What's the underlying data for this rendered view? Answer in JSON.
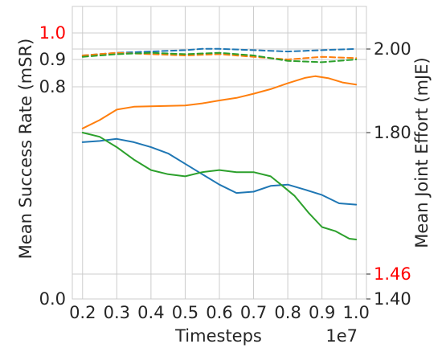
{
  "chart_data": {
    "type": "line",
    "xlabel": "Timesteps",
    "x_offset_label": "1e7",
    "xlim": [
      0.17,
      1.03
    ],
    "xticks": [
      "0.2",
      "0.3",
      "0.4",
      "0.5",
      "0.6",
      "0.7",
      "0.8",
      "0.9",
      "1.0"
    ],
    "xtick_values": [
      0.2,
      0.3,
      0.4,
      0.5,
      0.6,
      0.7,
      0.8,
      0.9,
      1.0
    ],
    "left_axis": {
      "label": "Mean Success Rate (mSR)",
      "ticks": [
        {
          "label": "0.0",
          "value": 0.0,
          "color": "#262626"
        },
        {
          "label": "0.8",
          "value": 0.8,
          "color": "#262626"
        },
        {
          "label": "0.9",
          "value": 0.9,
          "color": "#262626"
        },
        {
          "label": "1.0",
          "value": 1.0,
          "color": "#ff0000"
        }
      ]
    },
    "right_axis": {
      "label": "Mean Joint Effort (mJE)",
      "ticks": [
        {
          "label": "1.40",
          "value": 1.4,
          "color": "#262626"
        },
        {
          "label": "1.46",
          "value": 1.46,
          "color": "#ff0000"
        },
        {
          "label": "1.80",
          "value": 1.8,
          "color": "#262626"
        },
        {
          "label": "2.00",
          "value": 2.0,
          "color": "#262626"
        }
      ]
    },
    "grid": true,
    "colors": {
      "blue": "#1f77b4",
      "orange": "#ff7f0e",
      "green": "#2ca02c",
      "highlight": "#ff0000"
    },
    "mSR_series": [
      {
        "color": "#1f77b4",
        "dash": true,
        "x": [
          0.2,
          0.3,
          0.4,
          0.5,
          0.55,
          0.6,
          0.7,
          0.8,
          0.9,
          1.0
        ],
        "y": [
          0.915,
          0.925,
          0.93,
          0.935,
          0.94,
          0.94,
          0.935,
          0.93,
          0.935,
          0.94
        ]
      },
      {
        "color": "#ff7f0e",
        "dash": true,
        "x": [
          0.2,
          0.3,
          0.4,
          0.5,
          0.6,
          0.7,
          0.8,
          0.9,
          1.0
        ],
        "y": [
          0.915,
          0.925,
          0.92,
          0.915,
          0.92,
          0.91,
          0.9,
          0.91,
          0.905
        ]
      },
      {
        "color": "#2ca02c",
        "dash": true,
        "x": [
          0.2,
          0.3,
          0.4,
          0.5,
          0.6,
          0.7,
          0.8,
          0.9,
          1.0
        ],
        "y": [
          0.91,
          0.92,
          0.925,
          0.92,
          0.925,
          0.915,
          0.895,
          0.89,
          0.9
        ]
      }
    ],
    "mJE_series": [
      {
        "color": "#ff7f0e",
        "dash": false,
        "x": [
          0.2,
          0.25,
          0.3,
          0.35,
          0.4,
          0.5,
          0.55,
          0.6,
          0.65,
          0.7,
          0.75,
          0.8,
          0.85,
          0.88,
          0.92,
          0.96,
          1.0
        ],
        "y": [
          1.81,
          1.83,
          1.855,
          1.862,
          1.863,
          1.865,
          1.87,
          1.877,
          1.883,
          1.893,
          1.904,
          1.918,
          1.931,
          1.935,
          1.93,
          1.92,
          1.915
        ]
      },
      {
        "color": "#1f77b4",
        "dash": false,
        "x": [
          0.2,
          0.25,
          0.3,
          0.35,
          0.4,
          0.45,
          0.5,
          0.55,
          0.6,
          0.65,
          0.7,
          0.75,
          0.8,
          0.85,
          0.9,
          0.95,
          1.0
        ],
        "y": [
          1.777,
          1.78,
          1.785,
          1.777,
          1.765,
          1.75,
          1.725,
          1.7,
          1.675,
          1.655,
          1.658,
          1.672,
          1.675,
          1.663,
          1.65,
          1.63,
          1.627
        ]
      },
      {
        "color": "#2ca02c",
        "dash": false,
        "x": [
          0.2,
          0.25,
          0.3,
          0.35,
          0.4,
          0.45,
          0.5,
          0.55,
          0.6,
          0.65,
          0.7,
          0.75,
          0.78,
          0.82,
          0.86,
          0.9,
          0.94,
          0.98,
          1.0
        ],
        "y": [
          1.8,
          1.79,
          1.765,
          1.735,
          1.71,
          1.7,
          1.695,
          1.705,
          1.71,
          1.705,
          1.705,
          1.695,
          1.675,
          1.648,
          1.608,
          1.573,
          1.563,
          1.545,
          1.543
        ]
      }
    ]
  }
}
